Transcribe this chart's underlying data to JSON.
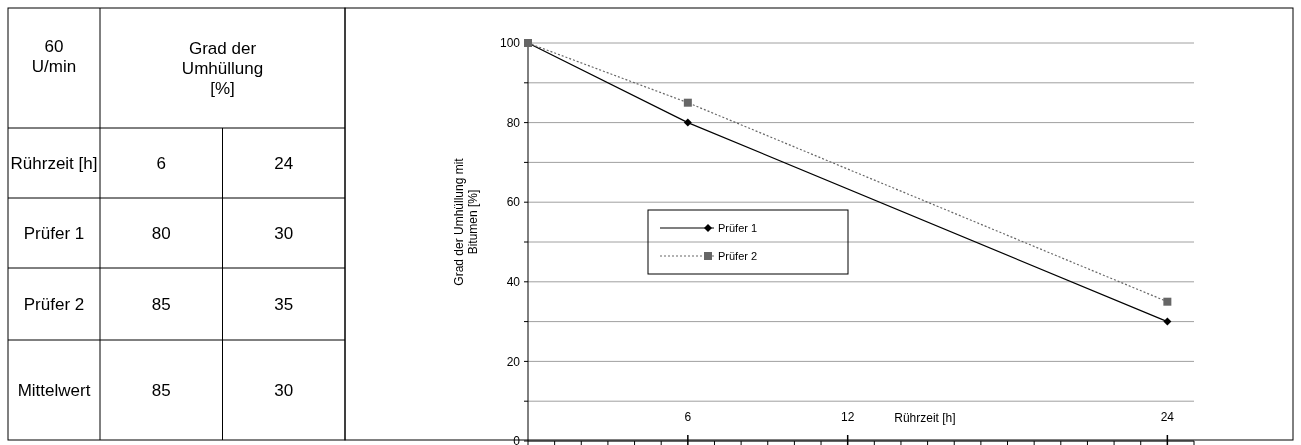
{
  "chart_data": [
    {
      "type": "other",
      "data_labels": true,
      "title": "60 U/min",
      "subtitle": "Grad der Umhüllung [%]",
      "xlabel": "Rührzeit [h]",
      "categories": [
        "6",
        "24"
      ],
      "series": [
        {
          "name": "Prüfer 1",
          "values": [
            80,
            30
          ]
        },
        {
          "name": "Prüfer 2",
          "values": [
            85,
            35
          ]
        },
        {
          "name": "Mittelwert",
          "values": [
            85,
            30
          ]
        }
      ]
    },
    {
      "type": "line",
      "xlabel": "Rührzeit [h]",
      "ylabel": "Grad der Umhüllung  mit Bitumen [%]",
      "xlim": [
        0,
        25
      ],
      "xticks": [
        {
          "value": 0,
          "label": null
        },
        {
          "value": 1,
          "label": null
        },
        {
          "value": 2,
          "label": null
        },
        {
          "value": 3,
          "label": null
        },
        {
          "value": 4,
          "label": null
        },
        {
          "value": 5,
          "label": null
        },
        6,
        {
          "value": 7,
          "label": null
        },
        {
          "value": 8,
          "label": null
        },
        {
          "value": 9,
          "label": null
        },
        {
          "value": 10,
          "label": null
        },
        {
          "value": 11,
          "label": null
        },
        12,
        {
          "value": 13,
          "label": null
        },
        {
          "value": 14,
          "label": null
        },
        {
          "value": 15,
          "label": null
        },
        {
          "value": 16,
          "label": null
        },
        {
          "value": 17,
          "label": null
        },
        {
          "value": 18,
          "label": null
        },
        {
          "value": 19,
          "label": null
        },
        {
          "value": 20,
          "label": null
        },
        {
          "value": 21,
          "label": null
        },
        {
          "value": 22,
          "label": null
        },
        {
          "value": 23,
          "label": null
        },
        24,
        {
          "value": 25,
          "label": null
        }
      ],
      "ylim": [
        0,
        100
      ],
      "yticks": [
        0,
        {
          "value": 10,
          "label": null
        },
        20,
        {
          "value": 30,
          "label": null
        },
        40,
        {
          "value": 50,
          "label": null
        },
        60,
        {
          "value": 70,
          "label": null
        },
        80,
        {
          "value": 90,
          "label": null
        },
        100
      ],
      "grid": "y",
      "legend": "left",
      "x": [
        0,
        6,
        24
      ],
      "series": [
        {
          "name": "Prüfer 1",
          "color": "#000000",
          "values": [
            100,
            80,
            30
          ],
          "marker": "diamond",
          "line_style": "solid"
        },
        {
          "name": "Prüfer 2",
          "color": "#666666",
          "values": [
            100,
            85,
            35
          ],
          "marker": "square",
          "line_style": "dotted"
        }
      ]
    }
  ]
}
